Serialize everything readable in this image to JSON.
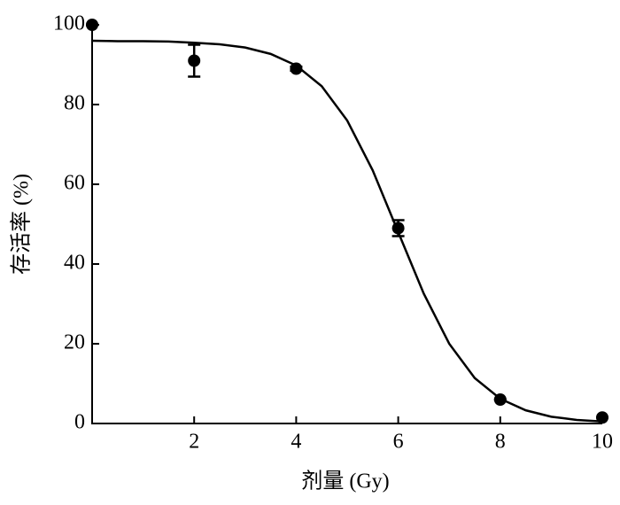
{
  "chart_data": {
    "type": "scatter",
    "xlabel": "剂量 (Gy)",
    "ylabel": "存活率 (%)",
    "x": [
      0,
      2,
      4,
      6,
      8,
      10
    ],
    "series": [
      {
        "values": [
          100,
          91,
          89,
          49,
          6,
          1.5
        ],
        "errors": [
          0,
          4,
          0.5,
          2,
          0,
          0
        ],
        "color": "#000000"
      }
    ],
    "fit": {
      "x": [
        0,
        0.5,
        1,
        1.5,
        2,
        2.5,
        3,
        3.5,
        4,
        4.5,
        5,
        5.5,
        6,
        6.5,
        7,
        7.5,
        8,
        8.5,
        9,
        9.5,
        10
      ],
      "values": [
        96.0,
        95.9,
        95.9,
        95.8,
        95.5,
        95.1,
        94.3,
        92.7,
        89.8,
        84.6,
        76.0,
        63.5,
        48.0,
        32.6,
        20.0,
        11.4,
        6.2,
        3.3,
        1.7,
        0.9,
        0.5
      ],
      "color": "#000000"
    },
    "xlim": [
      0,
      10
    ],
    "xticks": [
      2,
      4,
      6,
      8,
      10
    ],
    "ylim": [
      0,
      100
    ],
    "yticks": [
      0,
      20,
      40,
      60,
      80,
      100
    ]
  }
}
